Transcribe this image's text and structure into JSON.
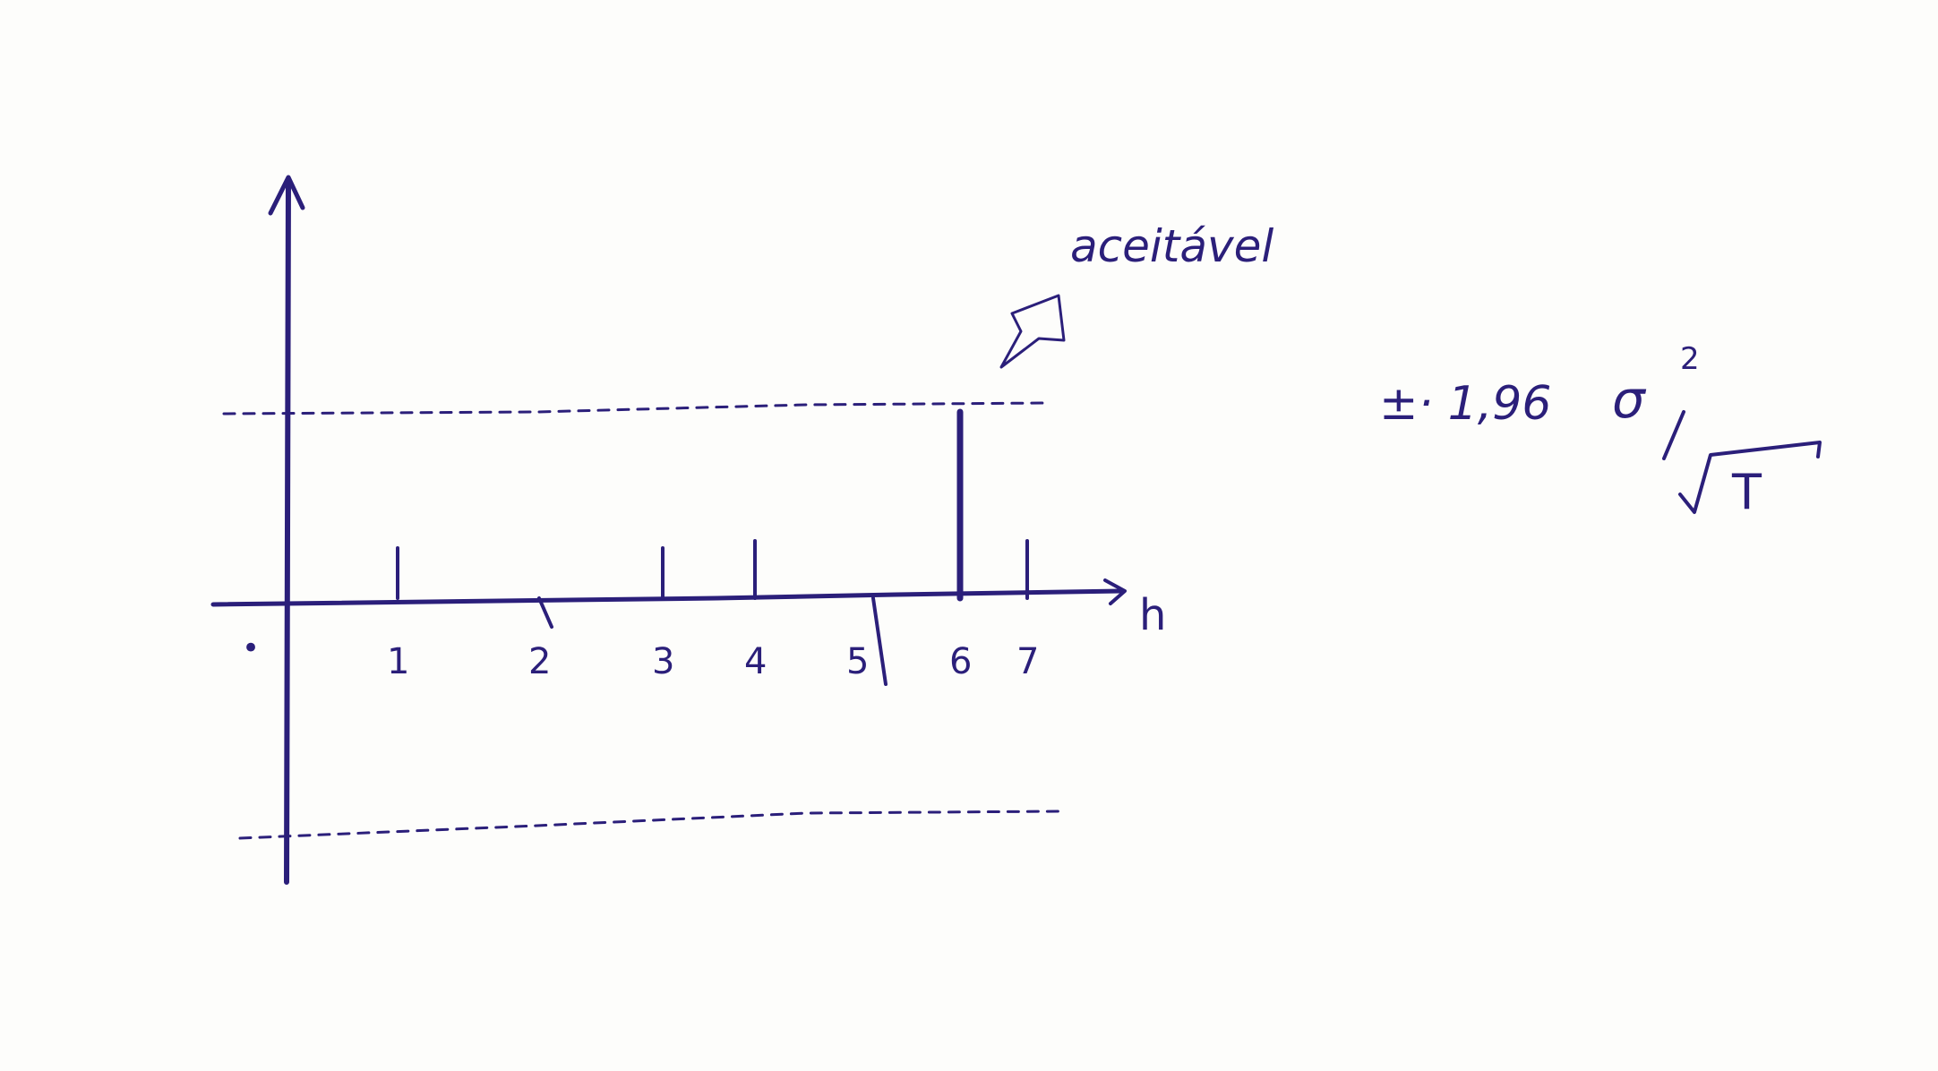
{
  "figure": {
    "axis_label": "h",
    "origin_label": "•",
    "annotation": "aceitável",
    "formula": {
      "prefix": "±· 1,96",
      "sigma": "σ",
      "exponent": "2",
      "denominator": "T"
    }
  },
  "chart_data": {
    "type": "bar",
    "xlabel": "h",
    "x": [
      1,
      2,
      3,
      4,
      5,
      6,
      7
    ],
    "tick_labels": [
      "1",
      "2",
      "3",
      "4",
      "5",
      "6",
      "7"
    ],
    "values": [
      0.35,
      -0.2,
      0.35,
      0.4,
      -0.6,
      1.3,
      0.4
    ],
    "confidence_band": [
      -1.15,
      1.1
    ],
    "ink_color": "#2b1f7a"
  }
}
